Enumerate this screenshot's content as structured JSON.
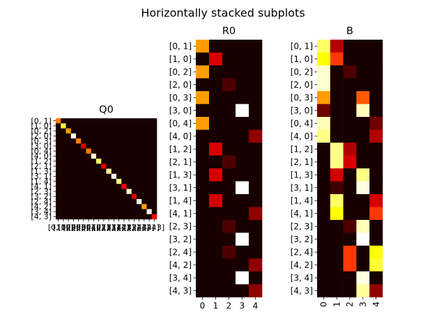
{
  "figure_title": "Horizontally stacked subplots",
  "chart_data": [
    {
      "type": "heatmap",
      "title": "Q0",
      "colormap": "hot",
      "rows": [
        "[0, 1]",
        "[1, 0]",
        "[0, 2]",
        "[2, 0]",
        "[0, 3]",
        "[3, 0]",
        "[0, 4]",
        "[4, 0]",
        "[1, 2]",
        "[2, 1]",
        "[1, 3]",
        "[3, 1]",
        "[1, 4]",
        "[4, 1]",
        "[2, 3]",
        "[3, 2]",
        "[2, 4]",
        "[4, 2]",
        "[3, 4]",
        "[4, 3]"
      ],
      "cols": [
        "[0, 1]",
        "[1, 0]",
        "[0, 2]",
        "[2, 0]",
        "[0, 3]",
        "[3, 0]",
        "[0, 4]",
        "[4, 0]",
        "[1, 2]",
        "[2, 1]",
        "[1, 3]",
        "[3, 1]",
        "[1, 4]",
        "[4, 1]",
        "[2, 3]",
        "[3, 2]",
        "[2, 4]",
        "[4, 2]",
        "[3, 4]",
        "[4, 3]"
      ],
      "diagonal": [
        0.55,
        0.8,
        0.6,
        0.98,
        0.55,
        0.3,
        0.55,
        0.95,
        0.85,
        0.3,
        0.9,
        0.98,
        0.88,
        0.35,
        0.95,
        0.3,
        0.98,
        0.6,
        0.98,
        0.35
      ],
      "off_diagonal_value": 0.02
    },
    {
      "type": "heatmap",
      "title": "R0",
      "colormap": "hot",
      "rows": [
        "[0, 1]",
        "[1, 0]",
        "[0, 2]",
        "[2, 0]",
        "[0, 3]",
        "[3, 0]",
        "[0, 4]",
        "[4, 0]",
        "[1, 2]",
        "[2, 1]",
        "[1, 3]",
        "[3, 1]",
        "[1, 4]",
        "[4, 1]",
        "[2, 3]",
        "[3, 2]",
        "[2, 4]",
        "[4, 2]",
        "[3, 4]",
        "[4, 3]"
      ],
      "cols": [
        "0",
        "1",
        "2",
        "3",
        "4"
      ],
      "values": [
        [
          0.6,
          0.02,
          0.02,
          0.02,
          0.02
        ],
        [
          0.02,
          0.3,
          0.02,
          0.02,
          0.02
        ],
        [
          0.6,
          0.02,
          0.02,
          0.02,
          0.02
        ],
        [
          0.02,
          0.02,
          0.1,
          0.02,
          0.02
        ],
        [
          0.6,
          0.02,
          0.02,
          0.02,
          0.02
        ],
        [
          0.02,
          0.02,
          0.02,
          1.0,
          0.02
        ],
        [
          0.6,
          0.02,
          0.02,
          0.02,
          0.02
        ],
        [
          0.02,
          0.02,
          0.02,
          0.02,
          0.2
        ],
        [
          0.02,
          0.3,
          0.02,
          0.02,
          0.02
        ],
        [
          0.02,
          0.02,
          0.1,
          0.02,
          0.02
        ],
        [
          0.02,
          0.3,
          0.02,
          0.02,
          0.02
        ],
        [
          0.02,
          0.02,
          0.02,
          1.0,
          0.02
        ],
        [
          0.02,
          0.3,
          0.02,
          0.02,
          0.02
        ],
        [
          0.02,
          0.02,
          0.02,
          0.02,
          0.2
        ],
        [
          0.02,
          0.02,
          0.1,
          0.02,
          0.02
        ],
        [
          0.02,
          0.02,
          0.02,
          1.0,
          0.02
        ],
        [
          0.02,
          0.02,
          0.1,
          0.02,
          0.02
        ],
        [
          0.02,
          0.02,
          0.02,
          0.02,
          0.2
        ],
        [
          0.02,
          0.02,
          0.02,
          1.0,
          0.02
        ],
        [
          0.02,
          0.02,
          0.02,
          0.02,
          0.2
        ]
      ]
    },
    {
      "type": "heatmap",
      "title": "B",
      "colormap": "hot",
      "rows": [
        "[0, 1]",
        "[1, 0]",
        "[0, 2]",
        "[2, 0]",
        "[0, 3]",
        "[3, 0]",
        "[0, 4]",
        "[4, 0]",
        "[1, 2]",
        "[2, 1]",
        "[1, 3]",
        "[3, 1]",
        "[1, 4]",
        "[4, 1]",
        "[2, 3]",
        "[3, 2]",
        "[2, 4]",
        "[4, 2]",
        "[3, 4]",
        "[4, 3]"
      ],
      "cols": [
        "0",
        "1",
        "2",
        "3",
        "4"
      ],
      "values": [
        [
          0.85,
          0.25,
          0.02,
          0.02,
          0.02
        ],
        [
          0.75,
          0.45,
          0.02,
          0.02,
          0.02
        ],
        [
          0.95,
          0.02,
          0.1,
          0.02,
          0.02
        ],
        [
          0.95,
          0.02,
          0.02,
          0.02,
          0.02
        ],
        [
          0.6,
          0.02,
          0.02,
          0.5,
          0.02
        ],
        [
          0.15,
          0.02,
          0.02,
          0.93,
          0.02
        ],
        [
          0.93,
          0.02,
          0.02,
          0.02,
          0.15
        ],
        [
          0.88,
          0.02,
          0.02,
          0.02,
          0.25
        ],
        [
          0.02,
          0.88,
          0.25,
          0.02,
          0.02
        ],
        [
          0.02,
          0.88,
          0.3,
          0.02,
          0.02
        ],
        [
          0.02,
          0.3,
          0.02,
          0.88,
          0.02
        ],
        [
          0.02,
          0.08,
          0.02,
          0.97,
          0.02
        ],
        [
          0.02,
          0.85,
          0.02,
          0.02,
          0.3
        ],
        [
          0.02,
          0.75,
          0.02,
          0.02,
          0.45
        ],
        [
          0.02,
          0.02,
          0.1,
          0.93,
          0.02
        ],
        [
          0.02,
          0.02,
          0.02,
          1.0,
          0.02
        ],
        [
          0.02,
          0.02,
          0.45,
          0.02,
          0.75
        ],
        [
          0.02,
          0.02,
          0.45,
          0.02,
          0.8
        ],
        [
          0.02,
          0.02,
          0.02,
          0.97,
          0.02
        ],
        [
          0.02,
          0.02,
          0.02,
          0.9,
          0.2
        ]
      ]
    }
  ]
}
